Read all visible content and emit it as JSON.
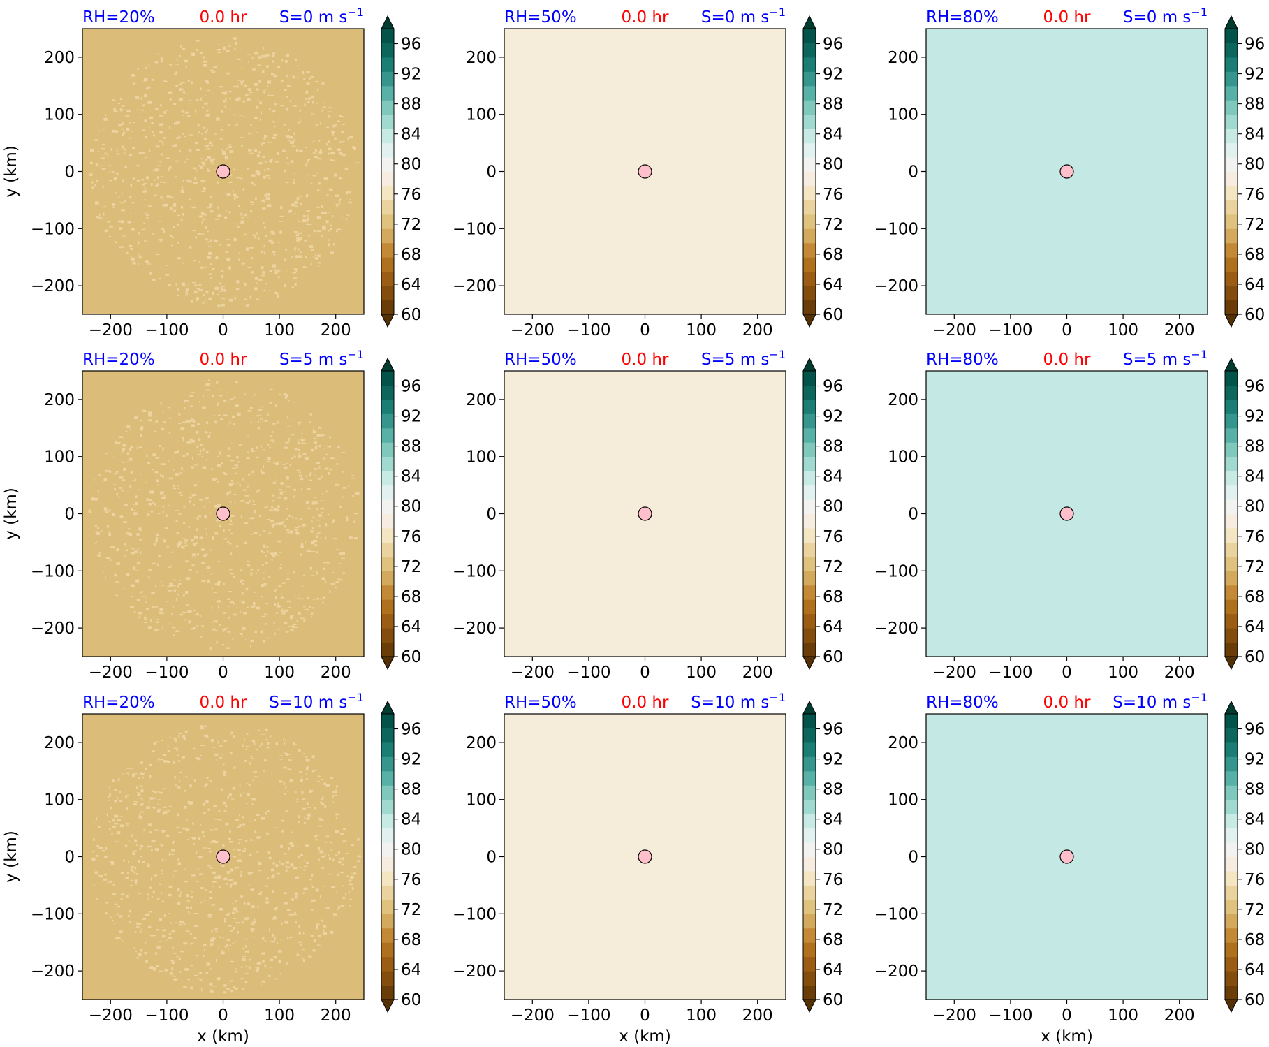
{
  "chart_data": {
    "type": "heatmap",
    "panel_time": "0.0 hr",
    "xlabel": "x (km)",
    "ylabel": "y (km)",
    "xlim": [
      -250,
      250
    ],
    "ylim": [
      -250,
      250
    ],
    "xticks": [
      -200,
      -100,
      0,
      100,
      200
    ],
    "yticks": [
      -200,
      -100,
      0,
      100,
      200
    ],
    "xtick_labels": [
      "−200",
      "−100",
      "0",
      "100",
      "200"
    ],
    "ytick_labels": [
      "−200",
      "−100",
      "0",
      "100",
      "200"
    ],
    "center_marker": {
      "x": 0,
      "y": 0,
      "color": "#ffc0cb"
    },
    "colorbar": {
      "min": 60,
      "max": 98,
      "step": 2,
      "extend": "both",
      "tick_labels": [
        "60",
        "64",
        "68",
        "72",
        "76",
        "80",
        "84",
        "88",
        "92",
        "96"
      ],
      "colors": [
        "#6a3c08",
        "#834d0d",
        "#9b5c13",
        "#b0711e",
        "#c38936",
        "#d3aa5d",
        "#dfc27d",
        "#ebd3a0",
        "#f4e5c3",
        "#f6ede0",
        "#f2f2f0",
        "#e1f1ef",
        "#c7eae5",
        "#9fd9cf",
        "#7fc8bb",
        "#58b1a6",
        "#36968d",
        "#1b7e75",
        "#0c665c",
        "#02544a"
      ],
      "under_color": "#543005",
      "over_color": "#003c30"
    },
    "panels": [
      {
        "rh_label": "RH=20%",
        "time": "0.0 hr",
        "shear_prefix": "S=0 m s",
        "shear_exp": "−1",
        "field_color": "#dbbc78",
        "speckle_color": "#ecd3a0"
      },
      {
        "rh_label": "RH=50%",
        "time": "0.0 hr",
        "shear_prefix": "S=0 m s",
        "shear_exp": "−1",
        "field_color": "#f5ecda"
      },
      {
        "rh_label": "RH=80%",
        "time": "0.0 hr",
        "shear_prefix": "S=0 m s",
        "shear_exp": "−1",
        "field_color": "#c4e8e3"
      },
      {
        "rh_label": "RH=20%",
        "time": "0.0 hr",
        "shear_prefix": "S=5 m s",
        "shear_exp": "−1",
        "field_color": "#dbbc78",
        "speckle_color": "#ecd3a0"
      },
      {
        "rh_label": "RH=50%",
        "time": "0.0 hr",
        "shear_prefix": "S=5 m s",
        "shear_exp": "−1",
        "field_color": "#f5ecda"
      },
      {
        "rh_label": "RH=80%",
        "time": "0.0 hr",
        "shear_prefix": "S=5 m s",
        "shear_exp": "−1",
        "field_color": "#c4e8e3"
      },
      {
        "rh_label": "RH=20%",
        "time": "0.0 hr",
        "shear_prefix": "S=10 m s",
        "shear_exp": "−1",
        "field_color": "#dbbc78",
        "speckle_color": "#ecd3a0"
      },
      {
        "rh_label": "RH=50%",
        "time": "0.0 hr",
        "shear_prefix": "S=10 m s",
        "shear_exp": "−1",
        "field_color": "#f5ecda"
      },
      {
        "rh_label": "RH=80%",
        "time": "0.0 hr",
        "shear_prefix": "S=10 m s",
        "shear_exp": "−1",
        "field_color": "#c4e8e3"
      }
    ]
  },
  "colors": {
    "label_blue": "#0000ff",
    "label_red": "#ff0000",
    "axis": "#000000"
  }
}
